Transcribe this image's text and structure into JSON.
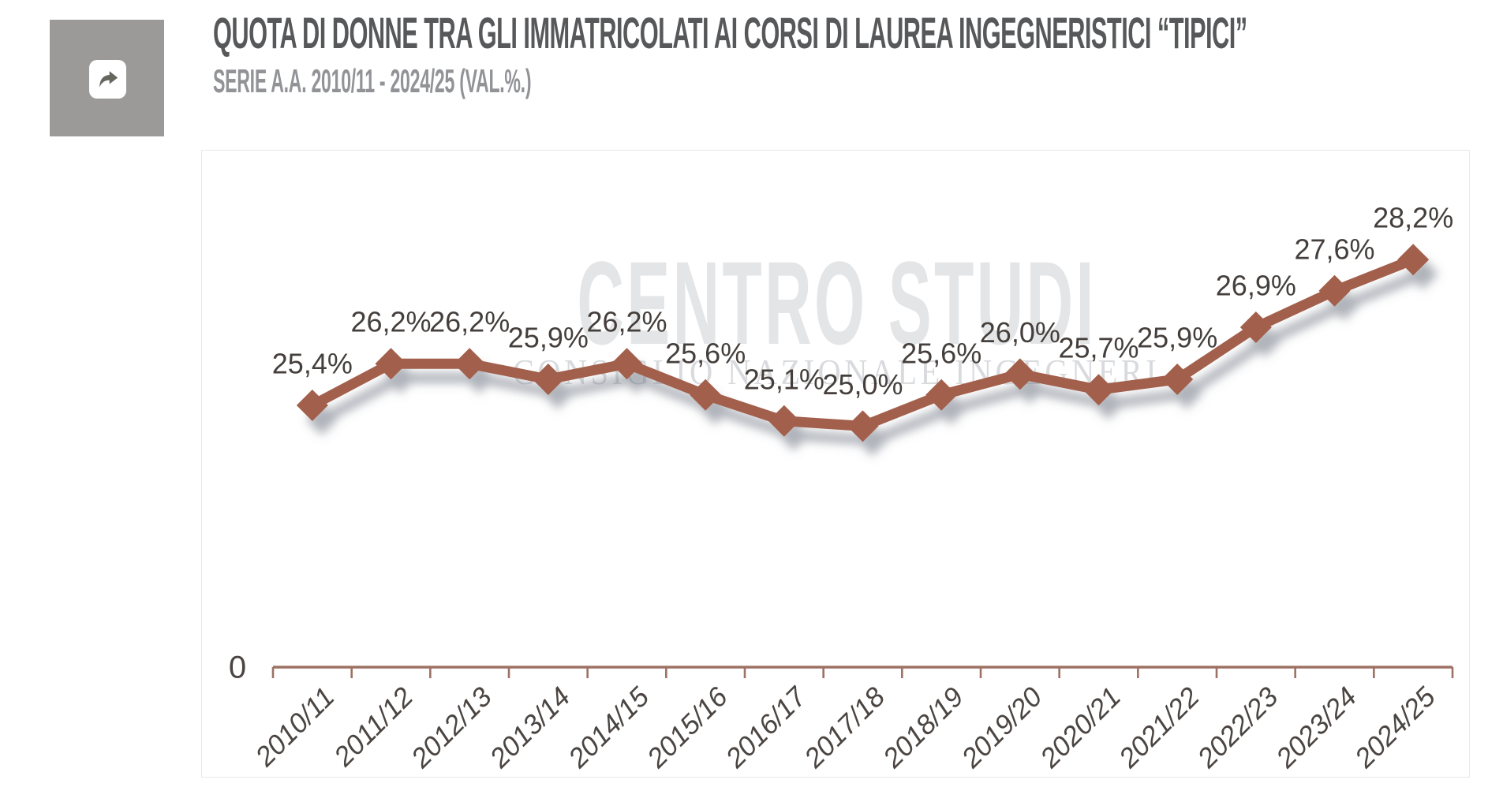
{
  "header": {
    "title": "QUOTA DI DONNE TRA GLI IMMATRICOLATI AI CORSI DI LAUREA INGEGNERISTICI “TIPICI”",
    "subtitle": "SERIE A.A. 2010/11 - 2024/25 (VAL.%.)"
  },
  "toolbar": {
    "share_icon": "share-arrow"
  },
  "watermark": {
    "line1": "CENTRO STUDI",
    "line2": "CONSIGLIO NAZIONALE INGEGNERI"
  },
  "chart_data": {
    "type": "line",
    "title": "Quota di donne tra gli immatricolati ai corsi di laurea ingegneristici “tipici”",
    "categories": [
      "2010/11",
      "2011/12",
      "2012/13",
      "2013/14",
      "2014/15",
      "2015/16",
      "2016/17",
      "2017/18",
      "2018/19",
      "2019/20",
      "2020/21",
      "2021/22",
      "2022/23",
      "2023/24",
      "2024/25"
    ],
    "values": [
      25.4,
      26.2,
      26.2,
      25.9,
      26.2,
      25.6,
      25.1,
      25.0,
      25.6,
      26.0,
      25.7,
      25.9,
      26.9,
      27.6,
      28.2
    ],
    "value_labels": [
      "25,4%",
      "26,2%",
      "26,2%",
      "25,9%",
      "26,2%",
      "25,6%",
      "25,1%",
      "25,0%",
      "25,6%",
      "26,0%",
      "25,7%",
      "25,9%",
      "26,9%",
      "27,6%",
      "28,2%"
    ],
    "y_axis_tick_label": "0",
    "xlabel": "",
    "ylabel": "",
    "legend": "none",
    "grid": "off",
    "marker": "diamond",
    "colors": {
      "line": "#a25f4b",
      "marker": "#a25f4b",
      "shadow": "#6e7681",
      "axis": "#9d7164",
      "data_label": "#453f3c",
      "tick_label": "#4b4542",
      "zero_label": "#4a4442"
    }
  }
}
